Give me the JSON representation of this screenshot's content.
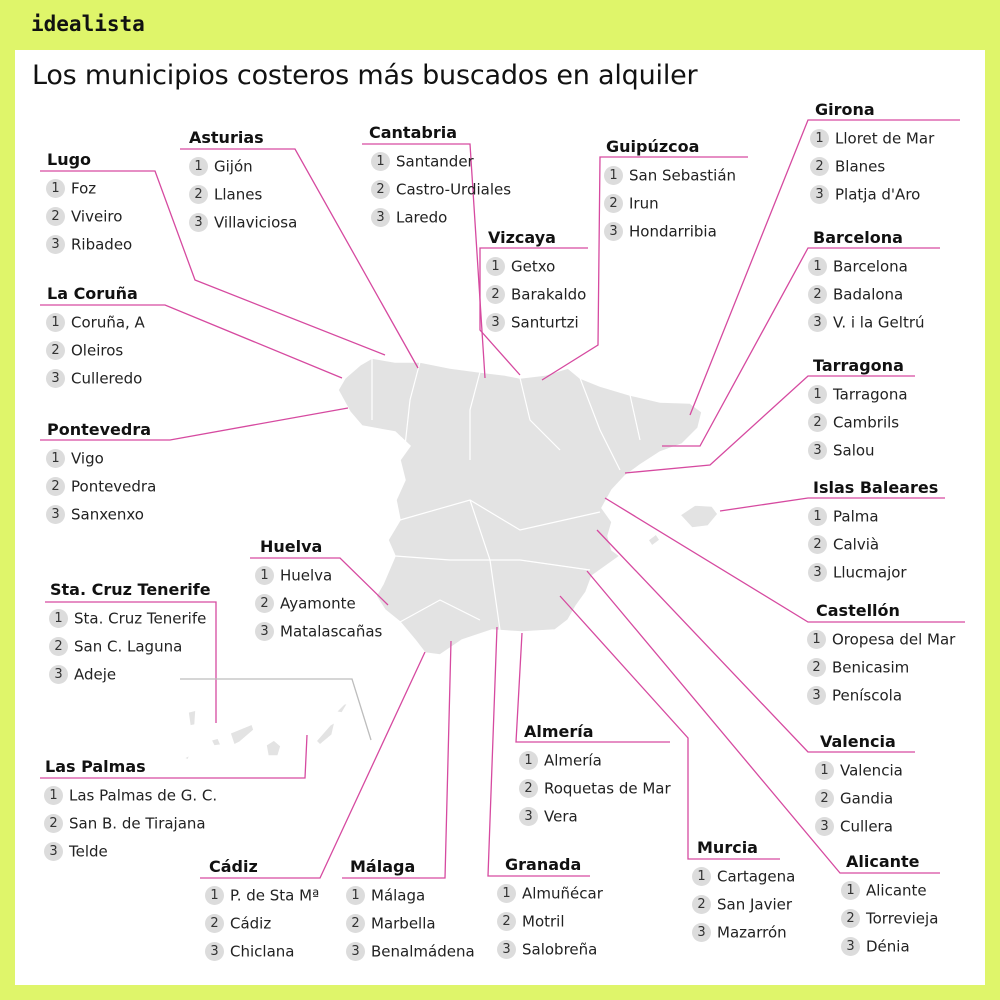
{
  "logo": "idealista",
  "title": "Los municipios costeros más buscados en alquiler",
  "colors": {
    "background": "#dff56a",
    "accent_line": "#d64aa0",
    "map_fill": "#e3e3e3",
    "number_badge": "#dcdcdc"
  },
  "regions": [
    {
      "id": "lugo",
      "name": "Lugo",
      "items": [
        "Foz",
        "Viveiro",
        "Ribadeo"
      ]
    },
    {
      "id": "asturias",
      "name": "Asturias",
      "items": [
        "Gijón",
        "Llanes",
        "Villaviciosa"
      ]
    },
    {
      "id": "cantabria",
      "name": "Cantabria",
      "items": [
        "Santander",
        "Castro-Urdiales",
        "Laredo"
      ]
    },
    {
      "id": "guipuzcoa",
      "name": "Guipúzcoa",
      "items": [
        "San Sebastián",
        "Irun",
        "Hondarribia"
      ]
    },
    {
      "id": "vizcaya",
      "name": "Vizcaya",
      "items": [
        "Getxo",
        "Barakaldo",
        "Santurtzi"
      ]
    },
    {
      "id": "girona",
      "name": "Girona",
      "items": [
        "Lloret de Mar",
        "Blanes",
        "Platja d'Aro"
      ]
    },
    {
      "id": "barcelona",
      "name": "Barcelona",
      "items": [
        "Barcelona",
        "Badalona",
        "V. i la Geltrú"
      ]
    },
    {
      "id": "tarragona",
      "name": "Tarragona",
      "items": [
        "Tarragona",
        "Cambrils",
        "Salou"
      ]
    },
    {
      "id": "baleares",
      "name": "Islas Baleares",
      "items": [
        "Palma",
        "Calvià",
        "Llucmajor"
      ]
    },
    {
      "id": "castellon",
      "name": "Castellón",
      "items": [
        "Oropesa del Mar",
        "Benicasim",
        "Peníscola"
      ]
    },
    {
      "id": "valencia",
      "name": "Valencia",
      "items": [
        "Valencia",
        "Gandia",
        "Cullera"
      ]
    },
    {
      "id": "alicante",
      "name": "Alicante",
      "items": [
        "Alicante",
        "Torrevieja",
        "Dénia"
      ]
    },
    {
      "id": "murcia",
      "name": "Murcia",
      "items": [
        "Cartagena",
        "San Javier",
        "Mazarrón"
      ]
    },
    {
      "id": "almeria",
      "name": "Almería",
      "items": [
        "Almería",
        "Roquetas de Mar",
        "Vera"
      ]
    },
    {
      "id": "granada",
      "name": "Granada",
      "items": [
        "Almuñécar",
        "Motril",
        "Salobreña"
      ]
    },
    {
      "id": "malaga",
      "name": "Málaga",
      "items": [
        "Málaga",
        "Marbella",
        "Benalmádena"
      ]
    },
    {
      "id": "cadiz",
      "name": "Cádiz",
      "items": [
        "P. de Sta Mª",
        "Cádiz",
        "Chiclana"
      ]
    },
    {
      "id": "huelva",
      "name": "Huelva",
      "items": [
        "Huelva",
        "Ayamonte",
        "Matalascañas"
      ]
    },
    {
      "id": "laspalmas",
      "name": "Las Palmas",
      "items": [
        "Las Palmas de G. C.",
        "San B. de Tirajana",
        "Telde"
      ]
    },
    {
      "id": "tenerife",
      "name": "Sta. Cruz Tenerife",
      "items": [
        "Sta. Cruz Tenerife",
        "San C. Laguna",
        "Adeje"
      ]
    },
    {
      "id": "coruna",
      "name": "La Coruña",
      "items": [
        "Coruña, A",
        "Oleiros",
        "Culleredo"
      ]
    },
    {
      "id": "pontevedra",
      "name": "Pontevedra",
      "items": [
        "Vigo",
        "Pontevedra",
        "Sanxenxo"
      ]
    }
  ]
}
